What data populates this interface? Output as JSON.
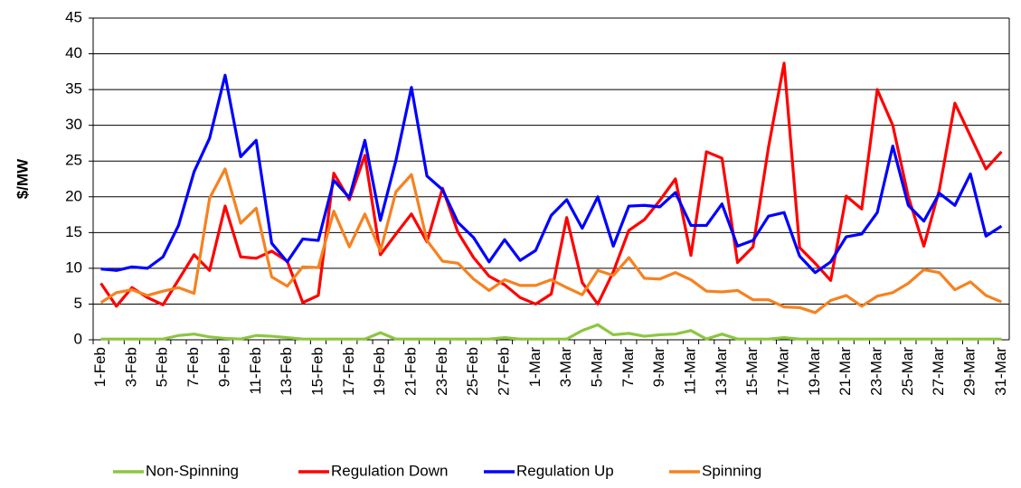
{
  "chart_data": {
    "type": "line",
    "y_label": "$/MW",
    "categories": [
      "1-Feb",
      null,
      "3-Feb",
      null,
      "5-Feb",
      null,
      "7-Feb",
      null,
      "9-Feb",
      null,
      "11-Feb",
      null,
      "13-Feb",
      null,
      "15-Feb",
      null,
      "17-Feb",
      null,
      "19-Feb",
      null,
      "21-Feb",
      null,
      "23-Feb",
      null,
      "25-Feb",
      null,
      "27-Feb",
      null,
      "1-Mar",
      null,
      "3-Mar",
      null,
      "5-Mar",
      null,
      "7-Mar",
      null,
      "9-Mar",
      null,
      "11-Mar",
      null,
      "13-Mar",
      null,
      "15-Mar",
      null,
      "17-Mar",
      null,
      "19-Mar",
      null,
      "21-Mar",
      null,
      "23-Mar",
      null,
      "25-Mar",
      null,
      "27-Mar",
      null,
      "29-Mar",
      null,
      "31-Mar"
    ],
    "series": [
      {
        "name": "Non-Spinning",
        "color": "#8cc63f",
        "values": [
          0.1,
          0.1,
          0.1,
          0.1,
          0.1,
          0.6,
          0.8,
          0.4,
          0.2,
          0.1,
          0.6,
          0.5,
          0.3,
          0.1,
          0.1,
          0.1,
          0.1,
          0.1,
          1.0,
          0.1,
          0.1,
          0.1,
          0.1,
          0.1,
          0.1,
          0.1,
          0.3,
          0.1,
          0.1,
          0.1,
          0.1,
          1.3,
          2.1,
          0.7,
          0.9,
          0.5,
          0.7,
          0.8,
          1.3,
          0.1,
          0.8,
          0.1,
          0.1,
          0.1,
          0.3,
          0.1,
          0.1,
          0.1,
          0.1,
          0.1,
          0.1,
          0.1,
          0.1,
          0.1,
          0.1,
          0.1,
          0.1,
          0.1,
          0.1
        ]
      },
      {
        "name": "Regulation Down",
        "color": "#ff0000",
        "values": [
          7.9,
          4.7,
          7.3,
          5.9,
          4.9,
          8.4,
          11.9,
          9.7,
          18.7,
          11.6,
          11.4,
          12.4,
          11.0,
          5.2,
          6.2,
          23.3,
          19.6,
          25.8,
          11.9,
          14.8,
          17.6,
          13.7,
          21.2,
          15.0,
          11.5,
          8.9,
          7.7,
          5.9,
          5.0,
          6.4,
          17.1,
          8.0,
          5.0,
          9.5,
          15.3,
          16.8,
          19.5,
          22.5,
          11.8,
          26.3,
          25.4,
          10.8,
          13.0,
          27.0,
          38.7,
          12.9,
          10.7,
          8.3,
          20.1,
          18.3,
          35.0,
          30.0,
          20.0,
          13.1,
          21.0,
          33.1,
          28.5,
          23.9,
          26.3
        ]
      },
      {
        "name": "Regulation Up",
        "color": "#0000ff",
        "values": [
          9.9,
          9.7,
          10.2,
          10.0,
          11.6,
          16.0,
          23.5,
          28.2,
          37.0,
          25.6,
          27.9,
          13.5,
          10.9,
          14.1,
          13.9,
          22.3,
          19.9,
          27.9,
          16.7,
          25.1,
          35.3,
          22.9,
          21.0,
          16.4,
          14.3,
          10.9,
          14.0,
          11.1,
          12.5,
          17.4,
          19.6,
          15.6,
          20.0,
          13.1,
          18.7,
          18.8,
          18.6,
          20.6,
          16.0,
          16.0,
          19.0,
          13.1,
          13.9,
          17.3,
          17.8,
          11.7,
          9.4,
          10.9,
          14.4,
          14.8,
          17.8,
          27.1,
          18.8,
          16.6,
          20.5,
          18.8,
          23.2,
          14.5,
          15.9
        ]
      },
      {
        "name": "Spinning",
        "color": "#f58220",
        "values": [
          5.2,
          6.6,
          7.0,
          6.2,
          6.8,
          7.3,
          6.5,
          19.8,
          23.9,
          16.3,
          18.4,
          8.8,
          7.5,
          10.2,
          10.1,
          18.0,
          13.0,
          17.6,
          12.4,
          20.7,
          23.1,
          13.9,
          11.0,
          10.7,
          8.5,
          6.9,
          8.4,
          7.6,
          7.6,
          8.4,
          7.3,
          6.3,
          9.7,
          9.0,
          11.5,
          8.6,
          8.5,
          9.4,
          8.4,
          6.8,
          6.7,
          6.9,
          5.6,
          5.6,
          4.6,
          4.5,
          3.8,
          5.5,
          6.2,
          4.7,
          6.1,
          6.6,
          7.9,
          9.8,
          9.4,
          7.0,
          8.1,
          6.2,
          5.3
        ]
      }
    ],
    "ylim": [
      0,
      45
    ],
    "yticks": [
      0,
      5,
      10,
      15,
      20,
      25,
      30,
      35,
      40,
      45
    ],
    "grid": true,
    "legend": "bottom"
  }
}
